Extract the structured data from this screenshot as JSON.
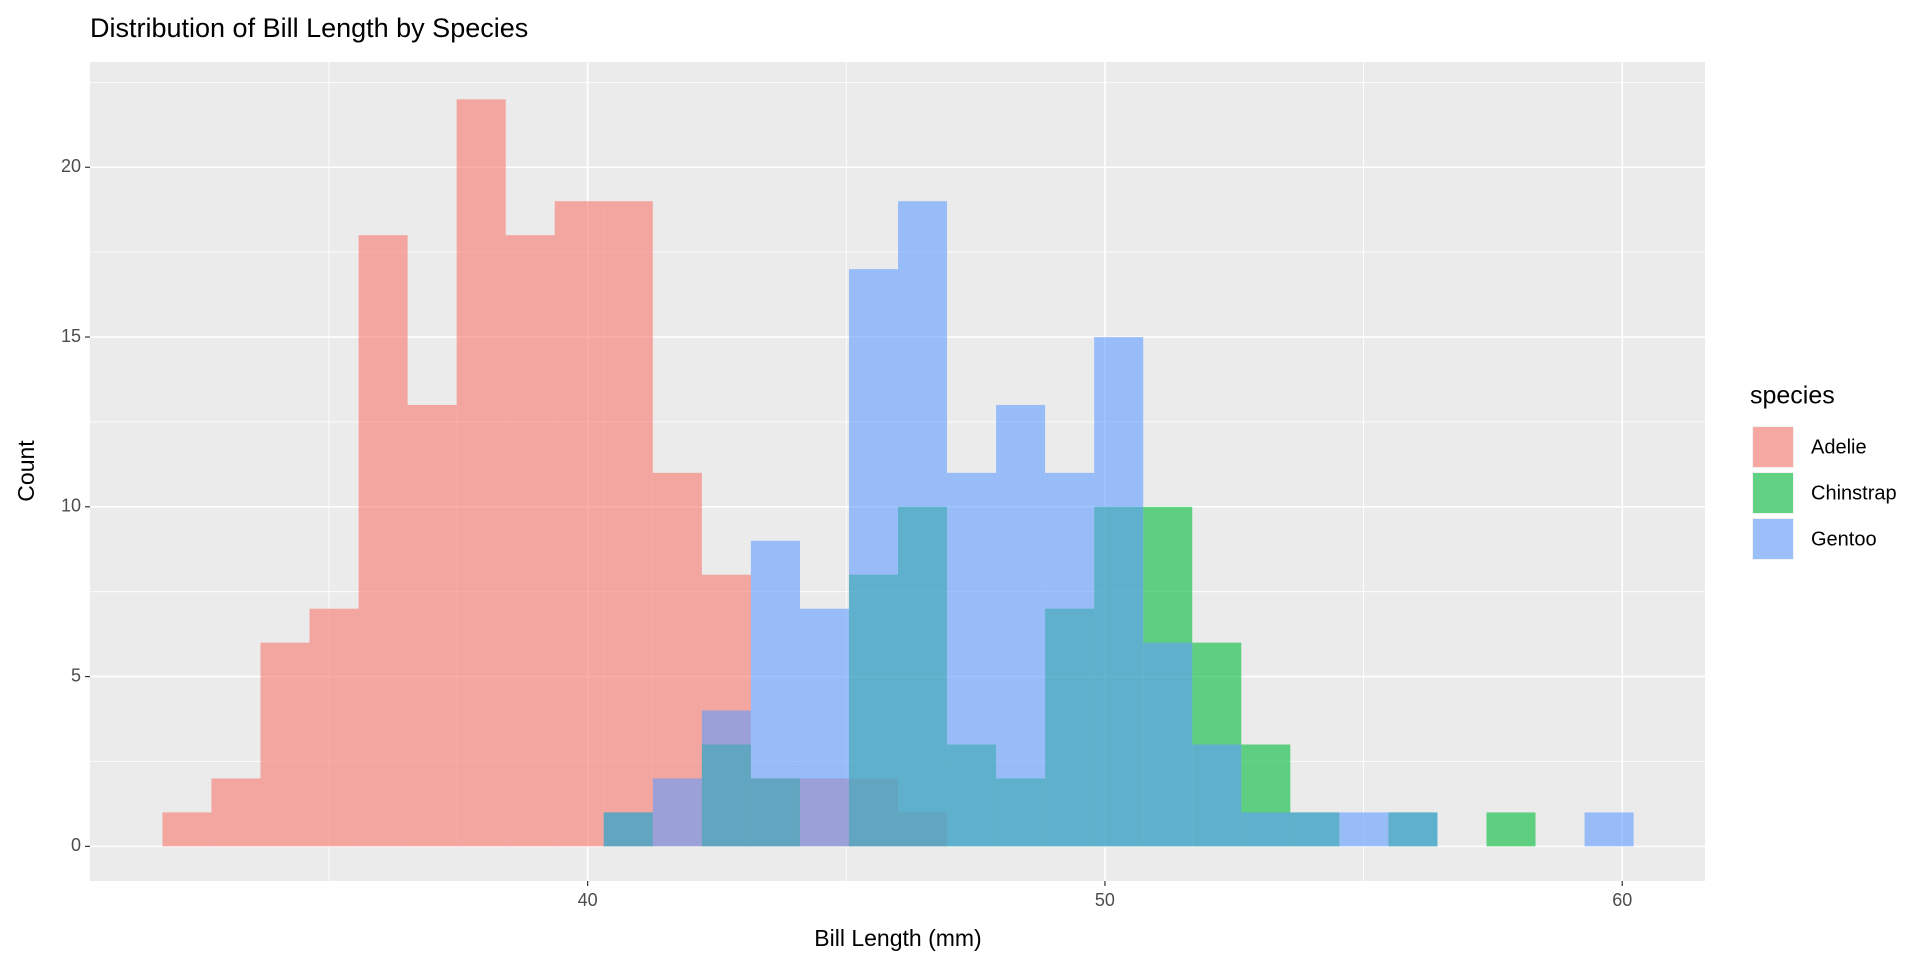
{
  "chart_data": {
    "type": "histogram",
    "title": "Distribution of Bill Length by Species",
    "x_label": "Bill Length (mm)",
    "y_label": "Count",
    "legend_title": "species",
    "bins": [
      31.78,
      32.728,
      33.676,
      34.624,
      35.572,
      36.52,
      37.468,
      38.416,
      39.364,
      40.312,
      41.26,
      42.208,
      43.156,
      44.104,
      45.052,
      46,
      46.948,
      47.896,
      48.844,
      49.792,
      50.74,
      51.688,
      52.636,
      53.584,
      54.532,
      55.48,
      56.428,
      57.376,
      58.324,
      59.272,
      60.22
    ],
    "series": [
      {
        "name": "Adelie",
        "color": "#F8766D",
        "values": [
          1,
          2,
          6,
          7,
          18,
          13,
          22,
          18,
          19,
          19,
          11,
          8,
          2,
          2,
          2,
          1,
          0,
          0,
          0,
          0,
          0,
          0,
          0,
          0,
          0,
          0,
          0,
          0,
          0,
          0
        ]
      },
      {
        "name": "Chinstrap",
        "color": "#00BA38",
        "values": [
          0,
          0,
          0,
          0,
          0,
          0,
          0,
          0,
          0,
          1,
          0,
          3,
          2,
          0,
          8,
          10,
          3,
          2,
          7,
          10,
          10,
          6,
          3,
          1,
          0,
          1,
          0,
          1,
          0,
          0
        ]
      },
      {
        "name": "Gentoo",
        "color": "#619CFF",
        "values": [
          0,
          0,
          0,
          0,
          0,
          0,
          0,
          0,
          0,
          1,
          2,
          4,
          9,
          7,
          17,
          19,
          11,
          13,
          11,
          15,
          6,
          3,
          1,
          1,
          1,
          1,
          0,
          0,
          0,
          1
        ]
      }
    ],
    "opacity": 0.6,
    "xlim": [
      30.38,
      61.6
    ],
    "ylim": [
      -1.02,
      23.1
    ],
    "xticks": [
      40,
      50,
      60
    ],
    "yticks": [
      0,
      5,
      10,
      15,
      20
    ],
    "grid": true,
    "legend": "right"
  }
}
